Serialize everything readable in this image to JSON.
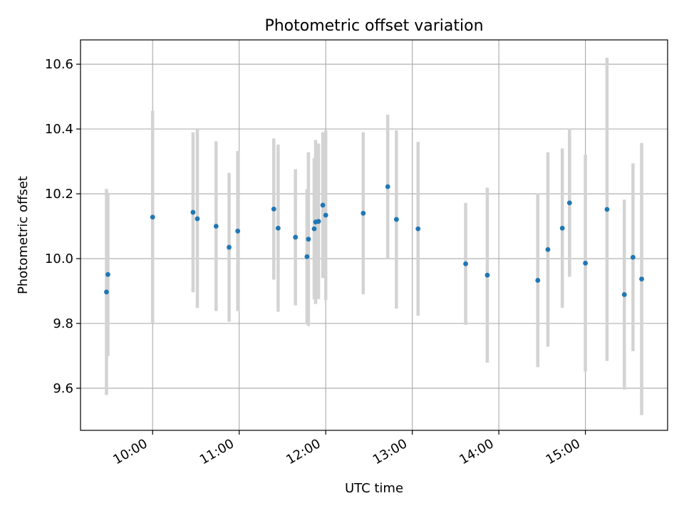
{
  "chart_data": {
    "type": "scatter",
    "title": "Photometric offset variation",
    "xlabel": "UTC time",
    "ylabel": "Photometric offset",
    "x_axis_type": "time",
    "xlim": [
      "09:10",
      "15:57"
    ],
    "ylim": [
      9.47,
      10.675
    ],
    "x_ticks": [
      "10:00",
      "11:00",
      "12:00",
      "13:00",
      "14:00",
      "15:00"
    ],
    "y_ticks": [
      "9.6",
      "9.8",
      "10.0",
      "10.2",
      "10.4",
      "10.6"
    ],
    "grid": true,
    "legend": "none",
    "colors": {
      "marker": "#1f77b4",
      "errorbar": "#d3d3d3",
      "grid": "#b0b0b0"
    },
    "points": [
      {
        "x": "09:28",
        "y": 9.897,
        "yerr": 0.318
      },
      {
        "x": "09:29",
        "y": 9.951,
        "yerr": 0.252
      },
      {
        "x": "10:00",
        "y": 10.128,
        "yerr": 0.328
      },
      {
        "x": "10:28",
        "y": 10.143,
        "yerr": 0.247
      },
      {
        "x": "10:31",
        "y": 10.123,
        "yerr": 0.275
      },
      {
        "x": "10:44",
        "y": 10.1,
        "yerr": 0.262
      },
      {
        "x": "10:53",
        "y": 10.035,
        "yerr": 0.23
      },
      {
        "x": "10:59",
        "y": 10.085,
        "yerr": 0.247
      },
      {
        "x": "11:24",
        "y": 10.153,
        "yerr": 0.218
      },
      {
        "x": "11:27",
        "y": 10.094,
        "yerr": 0.258
      },
      {
        "x": "11:39",
        "y": 10.066,
        "yerr": 0.21
      },
      {
        "x": "11:47",
        "y": 10.006,
        "yerr": 0.208
      },
      {
        "x": "11:48",
        "y": 10.06,
        "yerr": 0.268
      },
      {
        "x": "11:52",
        "y": 10.092,
        "yerr": 0.218
      },
      {
        "x": "11:53",
        "y": 10.113,
        "yerr": 0.253
      },
      {
        "x": "11:55",
        "y": 10.115,
        "yerr": 0.24
      },
      {
        "x": "11:58",
        "y": 10.165,
        "yerr": 0.225
      },
      {
        "x": "12:00",
        "y": 10.134,
        "yerr": 0.262
      },
      {
        "x": "12:26",
        "y": 10.14,
        "yerr": 0.25
      },
      {
        "x": "12:43",
        "y": 10.222,
        "yerr": 0.222
      },
      {
        "x": "12:49",
        "y": 10.121,
        "yerr": 0.275
      },
      {
        "x": "13:04",
        "y": 10.092,
        "yerr": 0.268
      },
      {
        "x": "13:37",
        "y": 9.984,
        "yerr": 0.188
      },
      {
        "x": "13:52",
        "y": 9.949,
        "yerr": 0.27
      },
      {
        "x": "14:27",
        "y": 9.933,
        "yerr": 0.268
      },
      {
        "x": "14:34",
        "y": 10.028,
        "yerr": 0.3
      },
      {
        "x": "14:44",
        "y": 10.094,
        "yerr": 0.246
      },
      {
        "x": "14:49",
        "y": 10.172,
        "yerr": 0.228
      },
      {
        "x": "15:00",
        "y": 9.986,
        "yerr": 0.335
      },
      {
        "x": "15:15",
        "y": 10.152,
        "yerr": 0.468
      },
      {
        "x": "15:27",
        "y": 9.889,
        "yerr": 0.293
      },
      {
        "x": "15:33",
        "y": 10.004,
        "yerr": 0.29
      },
      {
        "x": "15:39",
        "y": 9.937,
        "yerr": 0.42
      }
    ]
  }
}
